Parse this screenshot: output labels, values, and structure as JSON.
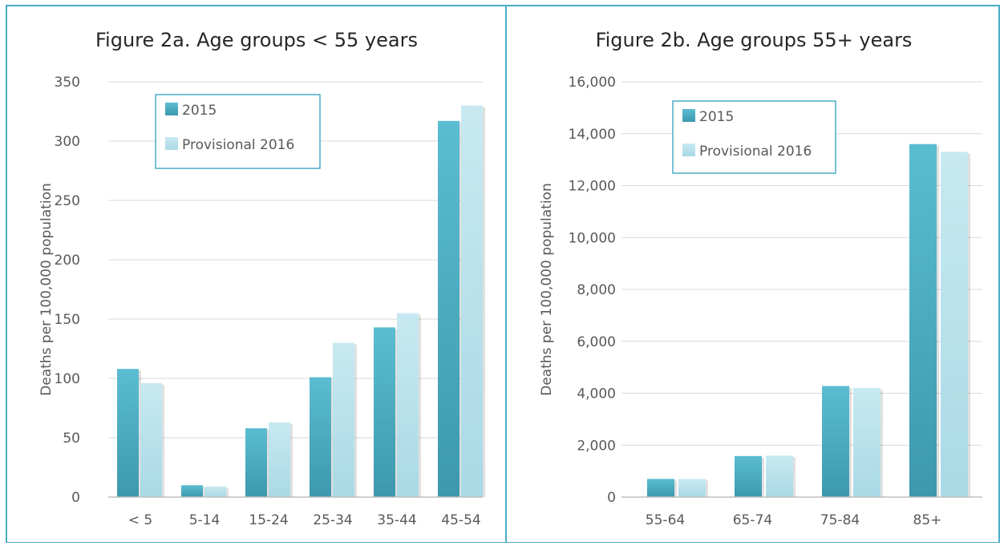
{
  "colors": {
    "frame": "#4bacc6",
    "series_2015_top": "#5bbdd2",
    "series_2015_bottom": "#3d98ad",
    "series_2016_top": "#c8e9f1",
    "series_2016_bottom": "#a9d9e5",
    "gridline": "#d9d9d9",
    "axis": "#bfbfbf",
    "text": "#595959",
    "title": "#262626"
  },
  "chart_data": [
    {
      "type": "bar",
      "title": "Figure 2a. Age groups < 55 years",
      "ylabel": "Deaths per 100,000 population",
      "xlabel": "",
      "categories": [
        "< 5",
        "5-14",
        "15-24",
        "25-34",
        "35-44",
        "45-54"
      ],
      "series": [
        {
          "name": "2015",
          "values": [
            108,
            10,
            58,
            101,
            143,
            317
          ]
        },
        {
          "name": "Provisional 2016",
          "values": [
            96,
            9,
            63,
            130,
            155,
            330
          ]
        }
      ],
      "ylim": [
        0,
        350
      ],
      "yticks": [
        0,
        50,
        100,
        150,
        200,
        250,
        300,
        350
      ],
      "ytick_labels": [
        "0",
        "50",
        "100",
        "150",
        "200",
        "250",
        "300",
        "350"
      ],
      "grid": true,
      "legend": "top-left"
    },
    {
      "type": "bar",
      "title": "Figure 2b. Age groups 55+ years",
      "ylabel": "Deaths per 100,000 population",
      "xlabel": "",
      "categories": [
        "55-64",
        "65-74",
        "75-84",
        "85+"
      ],
      "series": [
        {
          "name": "2015",
          "values": [
            700,
            1580,
            4280,
            13600
          ]
        },
        {
          "name": "Provisional 2016",
          "values": [
            700,
            1600,
            4200,
            13300
          ]
        }
      ],
      "ylim": [
        0,
        16000
      ],
      "yticks": [
        0,
        2000,
        4000,
        6000,
        8000,
        10000,
        12000,
        14000,
        16000
      ],
      "ytick_labels": [
        "0",
        "2,000",
        "4,000",
        "6,000",
        "8,000",
        "10,000",
        "12,000",
        "14,000",
        "16,000"
      ],
      "grid": true,
      "legend": "top-left"
    }
  ]
}
